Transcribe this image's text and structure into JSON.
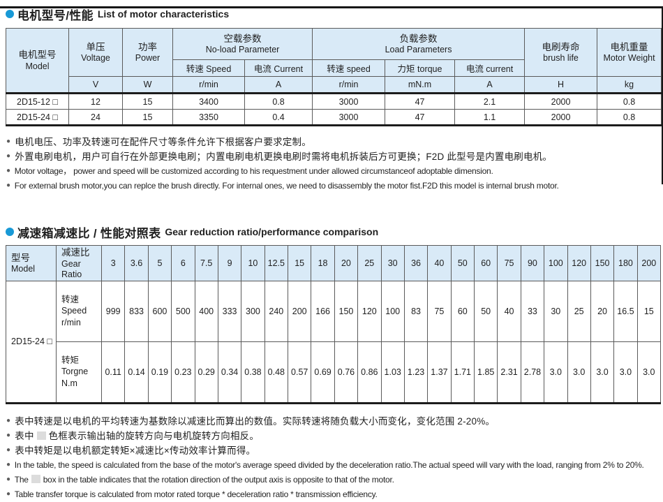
{
  "meta": {
    "accent_blue": "#1899d6",
    "header_bg": "#d9eaf7",
    "reversed_shade": "#e3e3e3"
  },
  "section1": {
    "title_zh": "电机型号/性能",
    "title_en": "List of motor characteristics",
    "table": {
      "col_model": {
        "zh": "电机型号",
        "en": "Model"
      },
      "col_voltage": {
        "zh": "单压",
        "en": "Voltage",
        "unit": "V"
      },
      "col_power": {
        "zh": "功率",
        "en": "Power",
        "unit": "W"
      },
      "grp_noload": {
        "zh": "空载参数",
        "en": "No-load Parameter"
      },
      "noload_speed": {
        "label": "转速 Speed",
        "unit": "r/min"
      },
      "noload_current": {
        "label": "电流 Current",
        "unit": "A"
      },
      "grp_load": {
        "zh": "负载参数",
        "en": "Load Parameters"
      },
      "load_speed": {
        "label": "转速 speed",
        "unit": "r/min"
      },
      "load_torque": {
        "label": "力矩 torque",
        "unit": "mN.m"
      },
      "load_current": {
        "label": "电流 current",
        "unit": "A"
      },
      "col_brush": {
        "zh": "电刷寿命",
        "en": "brush life",
        "unit": "H"
      },
      "col_weight": {
        "zh": "电机重量",
        "en": "Motor Weight",
        "unit": "kg"
      },
      "rows": [
        {
          "model": "2D15-12 □",
          "voltage": "12",
          "power": "15",
          "nl_speed": "3400",
          "nl_current": "0.8",
          "l_speed": "3000",
          "l_torque": "47",
          "l_current": "2.1",
          "brush": "2000",
          "weight": "0.8"
        },
        {
          "model": "2D15-24 □",
          "voltage": "24",
          "power": "15",
          "nl_speed": "3350",
          "nl_current": "0.4",
          "l_speed": "3000",
          "l_torque": "47",
          "l_current": "1.1",
          "brush": "2000",
          "weight": "0.8"
        }
      ]
    },
    "notes": [
      {
        "lang": "zh",
        "text": "电机电压、功率及转速可在配件尺寸等条件允许下根据客户要求定制。"
      },
      {
        "lang": "zh",
        "text": "外置电刷电机，用户可自行在外部更换电刷；内置电刷电机更换电刷时需将电机拆装后方可更换；F2D 此型号是内置电刷电机。"
      },
      {
        "lang": "en",
        "text": "Motor voltage， power and speed will be customized according to his requestment under allowed circumstanceof adoptable dimension."
      },
      {
        "lang": "en",
        "text": "For external brush motor,you can replce the brush directly. For internal ones, we need to disassembly the motor fist.F2D this model is internal brush motor."
      }
    ]
  },
  "section2": {
    "title_zh": "减速箱减速比 / 性能对照表",
    "title_en": "Gear reduction ratio/performance comparison",
    "table": {
      "col_model": {
        "zh": "型号",
        "en": "Model"
      },
      "col_ratio": {
        "zh": "减速比",
        "en": "Gear Ratio"
      },
      "model": "2D15-24 □",
      "speed_label": {
        "zh": "转速",
        "en": "Speed",
        "unit": "r/min"
      },
      "torque_label": {
        "zh": "转矩",
        "en": "Torgne",
        "unit": "N.m"
      },
      "ratios": [
        "3",
        "3.6",
        "5",
        "6",
        "7.5",
        "9",
        "10",
        "12.5",
        "15",
        "18",
        "20",
        "25",
        "30",
        "36",
        "40",
        "50",
        "60",
        "75",
        "90",
        "100",
        "120",
        "150",
        "180",
        "200"
      ],
      "speeds": [
        "999",
        "833",
        "600",
        "500",
        "400",
        "333",
        "300",
        "240",
        "200",
        "166",
        "150",
        "120",
        "100",
        "83",
        "75",
        "60",
        "50",
        "40",
        "33",
        "30",
        "25",
        "20",
        "16.5",
        "15"
      ],
      "torques": [
        "0.11",
        "0.14",
        "0.19",
        "0.23",
        "0.29",
        "0.34",
        "0.38",
        "0.48",
        "0.57",
        "0.69",
        "0.76",
        "0.86",
        "1.03",
        "1.23",
        "1.37",
        "1.71",
        "1.85",
        "2.31",
        "2.78",
        "3.0",
        "3.0",
        "3.0",
        "3.0",
        "3.0"
      ],
      "reversed_cols": {
        "start": 10,
        "end": 15
      }
    },
    "notes": [
      {
        "lang": "zh",
        "text": "表中转速是以电机的平均转速为基数除以减速比而算出的数值。实际转速将随负载大小而变化，变化范围 2-20%。"
      },
      {
        "lang": "zh",
        "before": "表中",
        "swatch": true,
        "after": "色框表示输出轴的旋转方向与电机旋转方向相反。"
      },
      {
        "lang": "zh",
        "text": "表中转矩是以电机额定转矩×减速比×传动效率计算而得。"
      },
      {
        "lang": "en",
        "text": "In the table, the speed is calculated from the base of the motor's average speed  divided by the deceleration ratio.The actual speed will vary with the load, ranging from 2% to 20%."
      },
      {
        "lang": "en",
        "before": "The",
        "swatch": true,
        "after": "box in the table indicates that the rotation direction of the output axis is opposite to that of the motor."
      },
      {
        "lang": "en",
        "text": "Table transfer torque is calculated from motor rated torque * deceleration ratio * transmission efficiency."
      }
    ]
  }
}
